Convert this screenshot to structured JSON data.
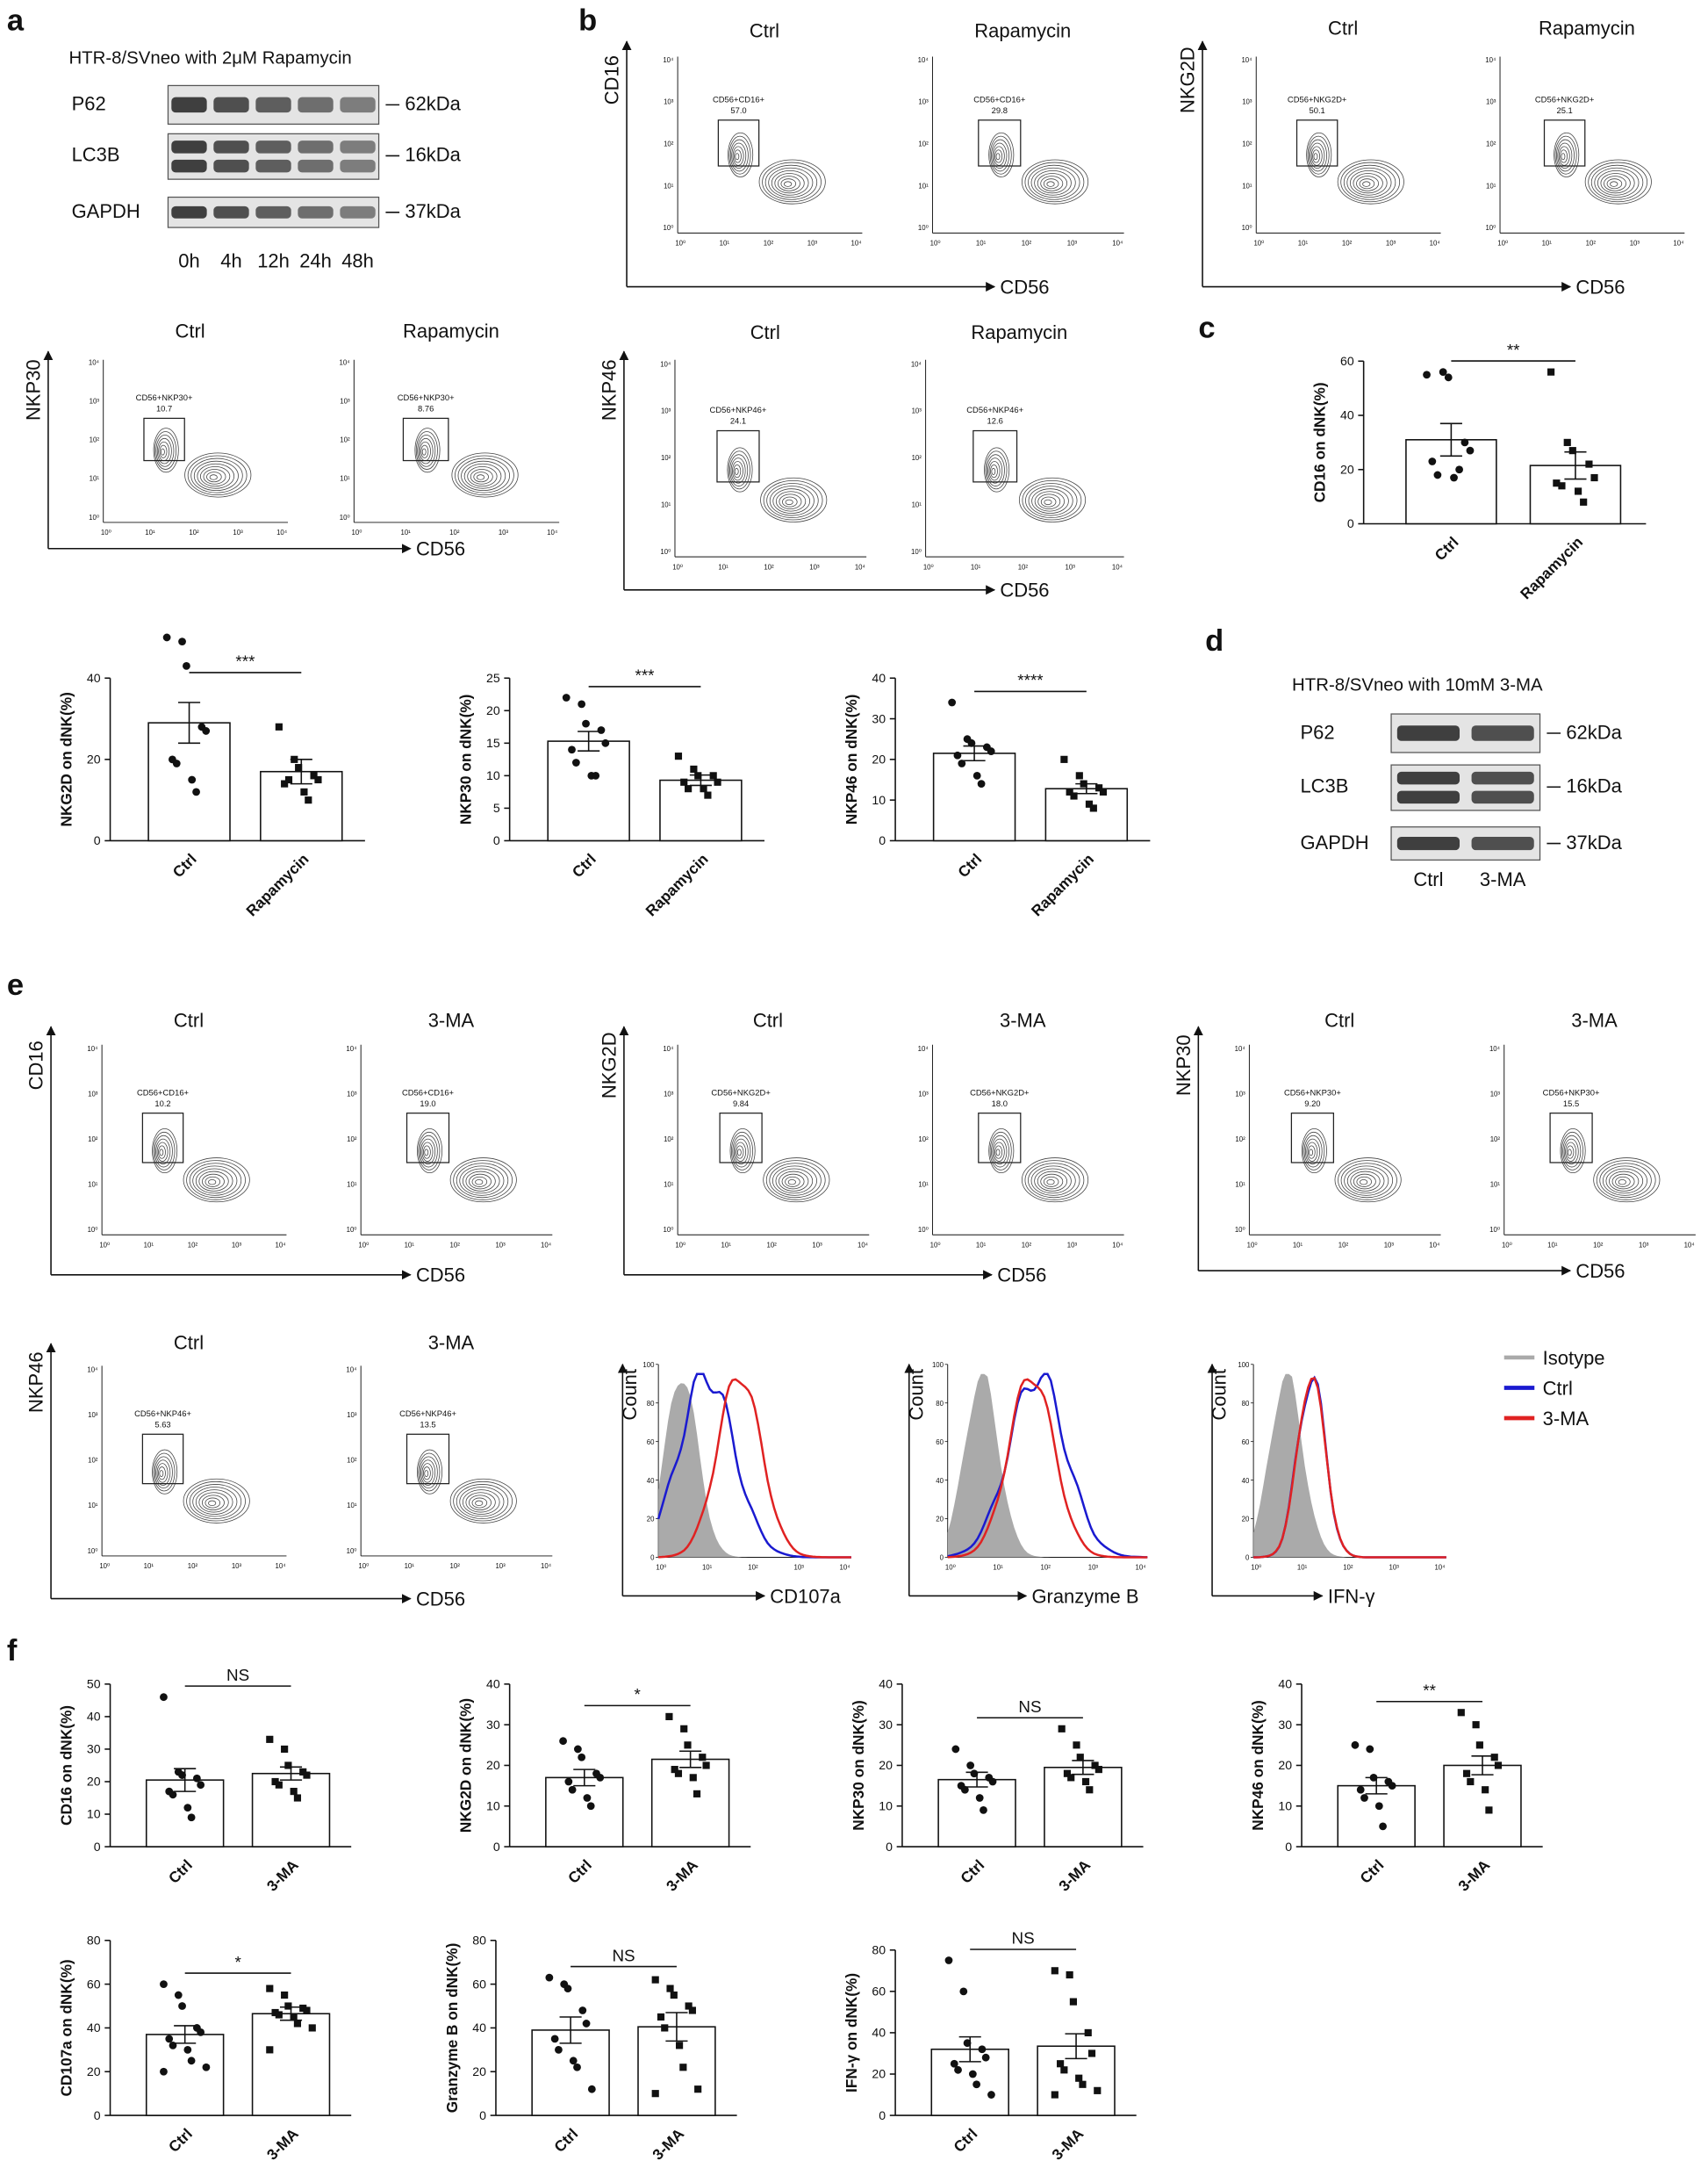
{
  "panel_labels": [
    "a",
    "b",
    "c",
    "d",
    "e",
    "f"
  ],
  "blots": [
    {
      "title": "HTR-8/SVneo with 2μM Rapamycin",
      "rows": [
        {
          "name": "P62",
          "size": "62kDa"
        },
        {
          "name": "LC3B",
          "size": "16kDa"
        },
        {
          "name": "GAPDH",
          "size": "37kDa"
        }
      ],
      "lanes": [
        "0h",
        "4h",
        "12h",
        "24h",
        "48h"
      ]
    },
    {
      "title": "HTR-8/SVneo with 10mM 3-MA",
      "rows": [
        {
          "name": "P62",
          "size": "62kDa"
        },
        {
          "name": "LC3B",
          "size": "16kDa"
        },
        {
          "name": "GAPDH",
          "size": "37kDa"
        }
      ],
      "lanes": [
        "Ctrl",
        "3-MA"
      ]
    }
  ],
  "flow_ticks": [
    "10⁰",
    "10¹",
    "10²",
    "10³",
    "10⁴"
  ],
  "flow_groups": [
    {
      "y_label": "CD16",
      "x_label": "CD56",
      "plots": [
        {
          "title": "Ctrl",
          "gate": "CD56+CD16+",
          "percent": "57.0"
        },
        {
          "title": "Rapamycin",
          "gate": "CD56+CD16+",
          "percent": "29.8"
        }
      ]
    },
    {
      "y_label": "NKG2D",
      "x_label": "CD56",
      "plots": [
        {
          "title": "Ctrl",
          "gate": "CD56+NKG2D+",
          "percent": "50.1"
        },
        {
          "title": "Rapamycin",
          "gate": "CD56+NKG2D+",
          "percent": "25.1"
        }
      ]
    },
    {
      "y_label": "NKP30",
      "x_label": "CD56",
      "plots": [
        {
          "title": "Ctrl",
          "gate": "CD56+NKP30+",
          "percent": "10.7"
        },
        {
          "title": "Rapamycin",
          "gate": "CD56+NKP30+",
          "percent": "8.76"
        }
      ]
    },
    {
      "y_label": "NKP46",
      "x_label": "CD56",
      "plots": [
        {
          "title": "Ctrl",
          "gate": "CD56+NKP46+",
          "percent": "24.1"
        },
        {
          "title": "Rapamycin",
          "gate": "CD56+NKP46+",
          "percent": "12.6"
        }
      ]
    },
    {
      "y_label": "CD16",
      "x_label": "CD56",
      "plots": [
        {
          "title": "Ctrl",
          "gate": "CD56+CD16+",
          "percent": "10.2"
        },
        {
          "title": "3-MA",
          "gate": "CD56+CD16+",
          "percent": "19.0"
        }
      ]
    },
    {
      "y_label": "NKG2D",
      "x_label": "CD56",
      "plots": [
        {
          "title": "Ctrl",
          "gate": "CD56+NKG2D+",
          "percent": "9.84"
        },
        {
          "title": "3-MA",
          "gate": "CD56+NKG2D+",
          "percent": "18.0"
        }
      ]
    },
    {
      "y_label": "NKP30",
      "x_label": "CD56",
      "plots": [
        {
          "title": "Ctrl",
          "gate": "CD56+NKP30+",
          "percent": "9.20"
        },
        {
          "title": "3-MA",
          "gate": "CD56+NKP30+",
          "percent": "15.5"
        }
      ]
    },
    {
      "y_label": "NKP46",
      "x_label": "CD56",
      "plots": [
        {
          "title": "Ctrl",
          "gate": "CD56+NKP46+",
          "percent": "5.63"
        },
        {
          "title": "3-MA",
          "gate": "CD56+NKP46+",
          "percent": "13.5"
        }
      ]
    }
  ],
  "histograms": {
    "y_label": "Count",
    "ylim": [
      0,
      100
    ],
    "yticks": [
      0,
      20,
      40,
      60,
      80,
      100
    ],
    "legend": [
      {
        "name": "Isotype",
        "color": "#aaaaaa"
      },
      {
        "name": "Ctrl",
        "color": "#1a1ad0"
      },
      {
        "name": "3-MA",
        "color": "#e02222"
      }
    ],
    "panels": [
      {
        "x_label": "CD107a"
      },
      {
        "x_label": "Granzyme B"
      },
      {
        "x_label": "IFN-γ"
      }
    ]
  },
  "chart_data": [
    {
      "type": "bar",
      "ylabel": "CD16 on dNK(%)",
      "categories": [
        "Ctrl",
        "Rapamycin"
      ],
      "values": [
        31,
        21.5
      ],
      "errors": [
        6,
        5
      ],
      "points": [
        [
          55,
          56,
          54,
          30,
          27,
          23,
          18,
          17,
          20
        ],
        [
          56,
          30,
          27,
          22,
          17,
          15,
          14,
          12,
          8
        ]
      ],
      "ylim": [
        0,
        60
      ],
      "yticks": [
        0,
        20,
        40,
        60
      ],
      "significance": "**"
    },
    {
      "type": "bar",
      "ylabel": "NKG2D on dNK(%)",
      "categories": [
        "Ctrl",
        "Rapamycin"
      ],
      "values": [
        29,
        17
      ],
      "errors": [
        5,
        3
      ],
      "points": [
        [
          50,
          49,
          43,
          28,
          27,
          20,
          19,
          15,
          12
        ],
        [
          28,
          20,
          18,
          16,
          15,
          14,
          15,
          12,
          10
        ]
      ],
      "ylim": [
        0,
        40
      ],
      "yticks": [
        0,
        20,
        40
      ],
      "significance": "***"
    },
    {
      "type": "bar",
      "ylabel": "NKP30 on dNK(%)",
      "categories": [
        "Ctrl",
        "Rapamycin"
      ],
      "values": [
        15.3,
        9.3
      ],
      "errors": [
        1.5,
        0.8
      ],
      "points": [
        [
          22,
          21,
          18,
          17,
          15,
          14,
          12,
          10,
          10
        ],
        [
          13,
          11,
          10,
          10,
          9,
          9,
          8,
          8,
          7
        ]
      ],
      "ylim": [
        0,
        25
      ],
      "yticks": [
        0,
        5,
        10,
        15,
        20,
        25
      ],
      "significance": "***"
    },
    {
      "type": "bar",
      "ylabel": "NKP46 on dNK(%)",
      "categories": [
        "Ctrl",
        "Rapamycin"
      ],
      "values": [
        21.5,
        12.8
      ],
      "errors": [
        1.8,
        1.2
      ],
      "points": [
        [
          34,
          25,
          24,
          23,
          22,
          21,
          19,
          16,
          14
        ],
        [
          20,
          16,
          14,
          13,
          12,
          12,
          11,
          9,
          8
        ]
      ],
      "ylim": [
        0,
        40
      ],
      "yticks": [
        0,
        10,
        20,
        30,
        40
      ],
      "significance": "****"
    },
    {
      "type": "bar",
      "ylabel": "CD16 on dNK(%)",
      "categories": [
        "Ctrl",
        "3-MA"
      ],
      "values": [
        20.5,
        22.5
      ],
      "errors": [
        3.5,
        2
      ],
      "points": [
        [
          46,
          23,
          22,
          21,
          19,
          17,
          16,
          12,
          9
        ],
        [
          33,
          30,
          25,
          23,
          22,
          20,
          19,
          17,
          15
        ]
      ],
      "ylim": [
        0,
        50
      ],
      "yticks": [
        0,
        10,
        20,
        30,
        40,
        50
      ],
      "significance": "NS"
    },
    {
      "type": "bar",
      "ylabel": "NKG2D on dNK(%)",
      "categories": [
        "Ctrl",
        "3-MA"
      ],
      "values": [
        17,
        21.5
      ],
      "errors": [
        2,
        2
      ],
      "points": [
        [
          26,
          24,
          22,
          18,
          17,
          16,
          14,
          12,
          10
        ],
        [
          32,
          29,
          25,
          22,
          20,
          19,
          18,
          17,
          13
        ]
      ],
      "ylim": [
        0,
        40
      ],
      "yticks": [
        0,
        10,
        20,
        30,
        40
      ],
      "significance": "*"
    },
    {
      "type": "bar",
      "ylabel": "NKP30 on dNK(%)",
      "categories": [
        "Ctrl",
        "3-MA"
      ],
      "values": [
        16.5,
        19.5
      ],
      "errors": [
        1.8,
        1.7
      ],
      "points": [
        [
          24,
          20,
          18,
          17,
          16,
          15,
          14,
          12,
          9
        ],
        [
          29,
          25,
          22,
          20,
          19,
          18,
          17,
          16,
          14
        ]
      ],
      "ylim": [
        0,
        40
      ],
      "yticks": [
        0,
        10,
        20,
        30,
        40
      ],
      "significance": "NS"
    },
    {
      "type": "bar",
      "ylabel": "NKP46 on dNK(%)",
      "categories": [
        "Ctrl",
        "3-MA"
      ],
      "values": [
        15,
        20
      ],
      "errors": [
        2,
        2.3
      ],
      "points": [
        [
          25,
          24,
          17,
          16,
          15,
          14,
          12,
          10,
          5
        ],
        [
          33,
          30,
          25,
          22,
          20,
          18,
          16,
          14,
          9
        ]
      ],
      "ylim": [
        0,
        40
      ],
      "yticks": [
        0,
        10,
        20,
        30,
        40
      ],
      "significance": "**"
    },
    {
      "type": "bar",
      "ylabel": "CD107a on dNK(%)",
      "categories": [
        "Ctrl",
        "3-MA"
      ],
      "values": [
        37,
        46.5
      ],
      "errors": [
        4,
        3
      ],
      "points": [
        [
          60,
          55,
          50,
          40,
          38,
          35,
          32,
          30,
          25,
          22,
          20
        ],
        [
          58,
          55,
          50,
          49,
          48,
          47,
          46,
          45,
          42,
          40,
          30
        ]
      ],
      "ylim": [
        0,
        80
      ],
      "yticks": [
        0,
        20,
        40,
        60,
        80
      ],
      "significance": "*"
    },
    {
      "type": "bar",
      "ylabel": "Granzyme B on dNK(%)",
      "categories": [
        "Ctrl",
        "3-MA"
      ],
      "values": [
        39,
        40.5
      ],
      "errors": [
        6,
        6.5
      ],
      "points": [
        [
          63,
          60,
          58,
          48,
          42,
          35,
          30,
          25,
          22,
          12
        ],
        [
          62,
          58,
          55,
          50,
          48,
          45,
          40,
          32,
          22,
          12,
          10
        ]
      ],
      "ylim": [
        0,
        80
      ],
      "yticks": [
        0,
        20,
        40,
        60,
        80
      ],
      "significance": "NS"
    },
    {
      "type": "bar",
      "ylabel": "IFN-γ on dNK(%)",
      "categories": [
        "Ctrl",
        "3-MA"
      ],
      "values": [
        32,
        33.5
      ],
      "errors": [
        6,
        6
      ],
      "points": [
        [
          75,
          60,
          35,
          32,
          28,
          25,
          22,
          20,
          15,
          10
        ],
        [
          70,
          68,
          55,
          40,
          30,
          25,
          22,
          18,
          15,
          12,
          10
        ]
      ],
      "ylim": [
        0,
        80
      ],
      "yticks": [
        0,
        20,
        40,
        60,
        80
      ],
      "significance": "NS"
    }
  ]
}
